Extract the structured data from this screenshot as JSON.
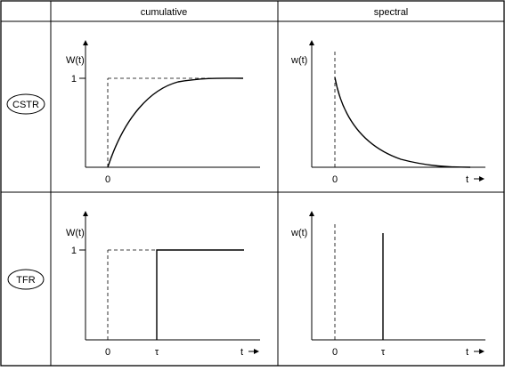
{
  "header": {
    "corner": "",
    "col_cumulative": "cumulative",
    "col_spectral": "spectral"
  },
  "rows": {
    "cstr": {
      "label": "CSTR"
    },
    "tfr": {
      "label": "TFR"
    }
  },
  "plots": {
    "cstr_cumulative": {
      "ylabel": "W(t)",
      "ytick": "1",
      "xtick0": "0",
      "xlabel": ""
    },
    "cstr_spectral": {
      "ylabel": "w(t)",
      "xtick0": "0",
      "xlabel": "t"
    },
    "tfr_cumulative": {
      "ylabel": "W(t)",
      "ytick": "1",
      "xtick0": "0",
      "xtick_tau": "τ",
      "xlabel": "t"
    },
    "tfr_spectral": {
      "ylabel": "w(t)",
      "xtick0": "0",
      "xtick_tau": "τ",
      "xlabel": "t"
    }
  }
}
